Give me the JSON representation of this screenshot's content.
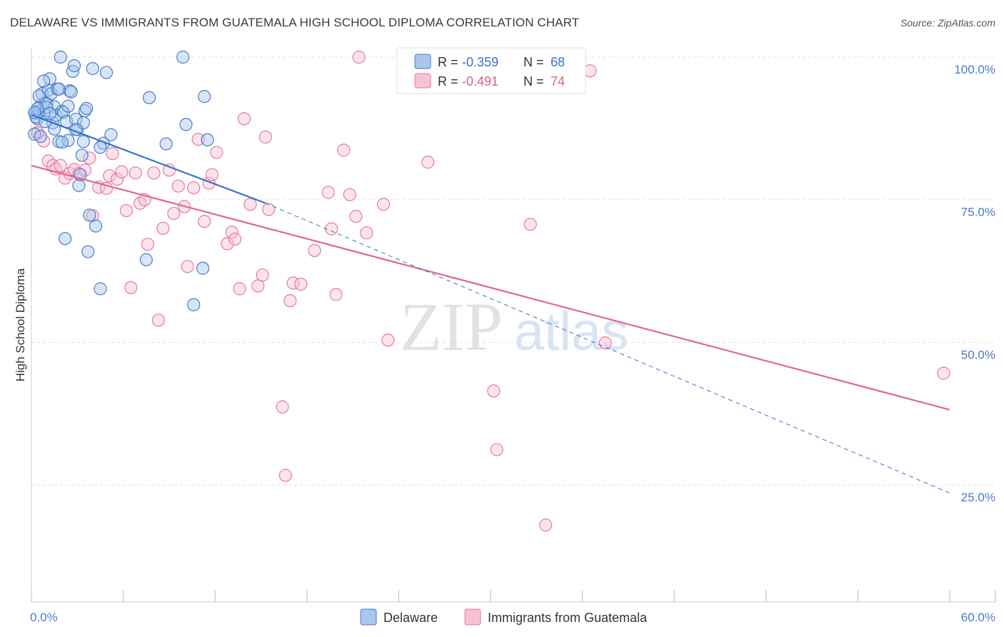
{
  "title": "DELAWARE VS IMMIGRANTS FROM GUATEMALA HIGH SCHOOL DIPLOMA CORRELATION CHART",
  "source": "Source: ZipAtlas.com",
  "watermark": {
    "zip": "ZIP",
    "atlas": "atlas"
  },
  "colors": {
    "blue": "#4a7cc7",
    "blue_fill": "#a8c6ee",
    "blue_line": "#3572c9",
    "pink": "#e87a9c",
    "pink_fill": "#f7c3d2",
    "pink_line": "#e0678f",
    "grid": "#e2e2e2",
    "axis": "#cccccc"
  },
  "legend_top": {
    "rows": [
      {
        "r_label": "R =",
        "r_value": "-0.359",
        "n_label": "N =",
        "n_value": "68",
        "series": "blue"
      },
      {
        "r_label": "R =",
        "r_value": "-0.491",
        "n_label": "N =",
        "n_value": "74",
        "series": "pink"
      }
    ]
  },
  "chart_data": {
    "type": "scatter",
    "title": "DELAWARE VS IMMIGRANTS FROM GUATEMALA HIGH SCHOOL DIPLOMA CORRELATION CHART",
    "xlabel": "",
    "ylabel": "High School Diploma",
    "xlim": [
      0,
      60
    ],
    "ylim": [
      4.5,
      100
    ],
    "x_tick_labels": [
      "0.0%",
      "60.0%"
    ],
    "y_ticks": [
      25,
      50,
      75,
      100
    ],
    "y_tick_labels": [
      "25.0%",
      "50.0%",
      "75.0%",
      "100.0%"
    ],
    "grid": true,
    "series": [
      {
        "name": "Delaware",
        "color": "blue",
        "r": -0.359,
        "n": 68,
        "trend": {
          "x": [
            0,
            15.3
          ],
          "y": [
            89.9,
            74.4
          ],
          "dashed_to": [
            60,
            23.6
          ]
        },
        "points": [
          [
            0.2,
            86.5
          ],
          [
            0.3,
            90.2
          ],
          [
            0.4,
            89.2
          ],
          [
            0.5,
            90.5
          ],
          [
            0.6,
            91.5
          ],
          [
            0.7,
            93.6
          ],
          [
            0.8,
            90.1
          ],
          [
            0.9,
            92.0
          ],
          [
            1.0,
            91.9
          ],
          [
            1.1,
            94.2
          ],
          [
            1.2,
            96.2
          ],
          [
            1.3,
            93.6
          ],
          [
            1.4,
            88.5
          ],
          [
            1.5,
            91.3
          ],
          [
            1.6,
            89.8
          ],
          [
            1.7,
            94.4
          ],
          [
            1.8,
            85.2
          ],
          [
            1.9,
            100.0
          ],
          [
            2.0,
            90.5
          ],
          [
            2.1,
            90.3
          ],
          [
            2.2,
            68.2
          ],
          [
            2.3,
            88.7
          ],
          [
            2.4,
            85.4
          ],
          [
            2.5,
            94.1
          ],
          [
            2.6,
            93.9
          ],
          [
            2.7,
            97.5
          ],
          [
            2.8,
            98.5
          ],
          [
            2.9,
            89.1
          ],
          [
            3.0,
            87.3
          ],
          [
            3.1,
            77.5
          ],
          [
            3.2,
            79.4
          ],
          [
            3.3,
            82.8
          ],
          [
            3.4,
            85.2
          ],
          [
            3.5,
            90.6
          ],
          [
            3.7,
            65.9
          ],
          [
            3.8,
            72.3
          ],
          [
            4.0,
            98.0
          ],
          [
            4.2,
            70.4
          ],
          [
            4.5,
            59.4
          ],
          [
            4.7,
            84.9
          ],
          [
            4.9,
            97.3
          ],
          [
            5.2,
            86.4
          ],
          [
            7.5,
            64.5
          ],
          [
            7.7,
            92.9
          ],
          [
            8.8,
            84.8
          ],
          [
            9.9,
            100.0
          ],
          [
            10.1,
            88.2
          ],
          [
            10.6,
            56.6
          ],
          [
            11.2,
            63.0
          ],
          [
            11.5,
            85.5
          ],
          [
            11.3,
            93.1
          ],
          [
            0.3,
            89.5
          ],
          [
            1.0,
            91.2
          ],
          [
            0.8,
            95.8
          ],
          [
            3.6,
            91.0
          ],
          [
            2.9,
            87.3
          ],
          [
            2.0,
            85.1
          ],
          [
            1.5,
            87.4
          ],
          [
            4.5,
            84.2
          ],
          [
            0.5,
            93.2
          ],
          [
            2.4,
            91.4
          ],
          [
            0.9,
            88.7
          ],
          [
            0.6,
            86.1
          ],
          [
            1.8,
            94.4
          ],
          [
            3.4,
            88.5
          ],
          [
            0.4,
            91.0
          ],
          [
            0.2,
            90.3
          ],
          [
            1.2,
            90.1
          ]
        ]
      },
      {
        "name": "Immigrants from Guatemala",
        "color": "pink",
        "r": -0.491,
        "n": 74,
        "trend": {
          "x": [
            0,
            60
          ],
          "y": [
            81.0,
            38.2
          ]
        },
        "points": [
          [
            0.4,
            86.7
          ],
          [
            0.8,
            85.3
          ],
          [
            1.1,
            81.8
          ],
          [
            1.4,
            81.0
          ],
          [
            1.6,
            80.4
          ],
          [
            1.9,
            81.0
          ],
          [
            2.2,
            78.8
          ],
          [
            2.5,
            79.6
          ],
          [
            2.8,
            80.3
          ],
          [
            3.1,
            79.6
          ],
          [
            3.5,
            80.2
          ],
          [
            3.8,
            82.3
          ],
          [
            4.0,
            72.2
          ],
          [
            4.4,
            77.2
          ],
          [
            4.9,
            77.0
          ],
          [
            5.1,
            79.2
          ],
          [
            5.3,
            83.1
          ],
          [
            5.6,
            78.6
          ],
          [
            5.9,
            79.9
          ],
          [
            6.2,
            73.1
          ],
          [
            6.5,
            59.6
          ],
          [
            6.8,
            79.7
          ],
          [
            7.1,
            74.4
          ],
          [
            7.4,
            75.0
          ],
          [
            7.6,
            67.2
          ],
          [
            8.0,
            79.7
          ],
          [
            8.3,
            53.9
          ],
          [
            8.6,
            70.0
          ],
          [
            9.0,
            80.2
          ],
          [
            9.3,
            72.6
          ],
          [
            9.6,
            77.4
          ],
          [
            10.0,
            73.8
          ],
          [
            10.2,
            63.3
          ],
          [
            10.6,
            77.1
          ],
          [
            10.9,
            85.6
          ],
          [
            11.3,
            71.2
          ],
          [
            11.6,
            77.9
          ],
          [
            11.8,
            79.4
          ],
          [
            12.1,
            83.3
          ],
          [
            12.8,
            67.3
          ],
          [
            13.1,
            69.3
          ],
          [
            13.3,
            68.1
          ],
          [
            13.6,
            59.4
          ],
          [
            13.9,
            89.2
          ],
          [
            14.3,
            74.2
          ],
          [
            14.8,
            59.9
          ],
          [
            15.1,
            61.8
          ],
          [
            15.3,
            86.0
          ],
          [
            15.5,
            73.3
          ],
          [
            16.4,
            38.7
          ],
          [
            16.6,
            26.7
          ],
          [
            16.9,
            57.3
          ],
          [
            17.1,
            60.4
          ],
          [
            17.6,
            60.2
          ],
          [
            18.5,
            66.1
          ],
          [
            19.4,
            76.3
          ],
          [
            19.6,
            69.9
          ],
          [
            19.9,
            58.4
          ],
          [
            20.4,
            83.7
          ],
          [
            20.8,
            75.9
          ],
          [
            21.2,
            72.1
          ],
          [
            21.4,
            100.0
          ],
          [
            21.9,
            69.2
          ],
          [
            23.0,
            74.2
          ],
          [
            23.3,
            50.4
          ],
          [
            25.9,
            81.6
          ],
          [
            30.2,
            41.5
          ],
          [
            30.4,
            31.2
          ],
          [
            32.6,
            70.7
          ],
          [
            33.6,
            18.0
          ],
          [
            36.5,
            97.6
          ],
          [
            37.5,
            49.9
          ],
          [
            59.6,
            44.6
          ],
          [
            0.4,
            86.8
          ]
        ]
      }
    ]
  },
  "legend_bottom": {
    "items": [
      {
        "label": "Delaware",
        "series": "blue"
      },
      {
        "label": "Immigrants from Guatemala",
        "series": "pink"
      }
    ]
  }
}
